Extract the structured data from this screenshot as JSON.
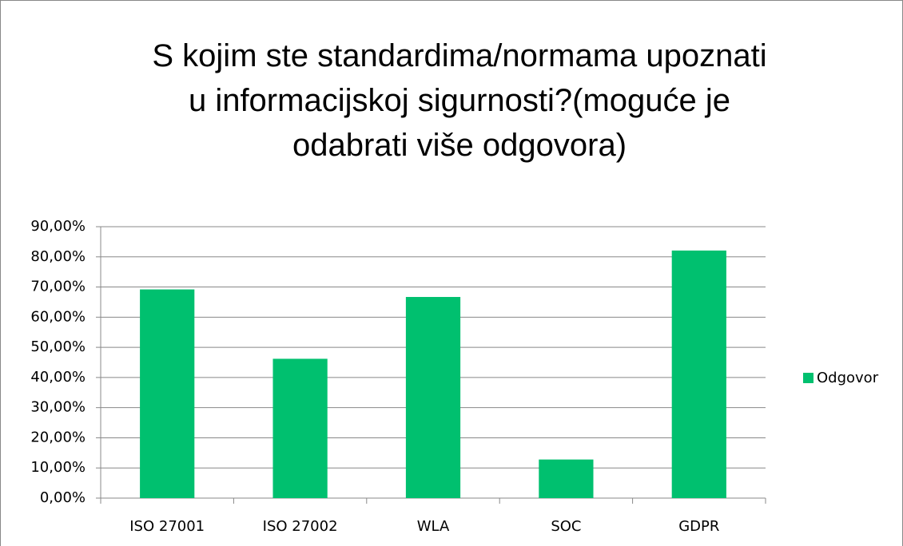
{
  "chart_data": {
    "type": "bar",
    "title": "S kojim ste standardima/normama upoznati u informacijskoj sigurnosti?(moguće je odabrati više odgovora)",
    "categories": [
      "ISO 27001",
      "ISO 27002",
      "WLA",
      "SOC",
      "GDPR"
    ],
    "series": [
      {
        "name": "Odgovor",
        "color": "#00c06f",
        "values": [
          69.2,
          46.2,
          66.7,
          12.8,
          82.1
        ]
      }
    ],
    "ylim": [
      0,
      90
    ],
    "yticks": [
      {
        "value": 0,
        "label": "0,00%"
      },
      {
        "value": 10,
        "label": "10,00%"
      },
      {
        "value": 20,
        "label": "20,00%"
      },
      {
        "value": 30,
        "label": "30,00%"
      },
      {
        "value": 40,
        "label": "40,00%"
      },
      {
        "value": 50,
        "label": "50,00%"
      },
      {
        "value": 60,
        "label": "60,00%"
      },
      {
        "value": 70,
        "label": "70,00%"
      },
      {
        "value": 80,
        "label": "80,00%"
      },
      {
        "value": 90,
        "label": "90,00%"
      }
    ],
    "grid": true,
    "legend": "right"
  }
}
